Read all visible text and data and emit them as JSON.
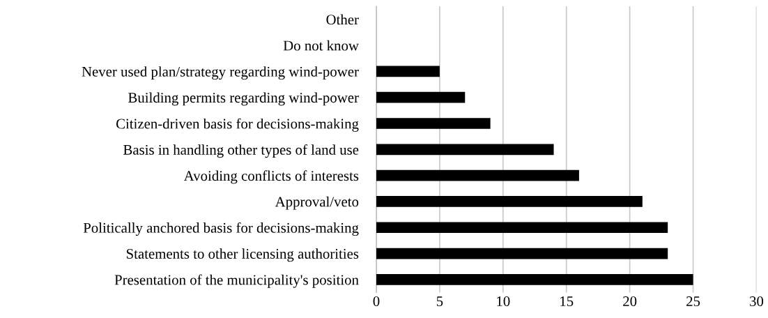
{
  "chart_data": {
    "type": "bar",
    "orientation": "horizontal",
    "categories": [
      "Other",
      "Do not know",
      "Never used plan/strategy regarding wind-power",
      "Building permits regarding wind-power",
      "Citizen-driven basis for decisions-making",
      "Basis in handling other types of land use",
      "Avoiding conflicts of interests",
      "Approval/veto",
      "Politically anchored basis for decisions-making",
      "Statements to other licensing authorities",
      "Presentation of the municipality's position"
    ],
    "values": [
      0,
      0,
      5,
      7,
      9,
      14,
      16,
      21,
      23,
      23,
      25
    ],
    "color": "#000000",
    "xlim": [
      0,
      30
    ],
    "xticks": [
      0,
      5,
      10,
      15,
      20,
      25,
      30
    ],
    "grid": "x",
    "legend": false
  }
}
